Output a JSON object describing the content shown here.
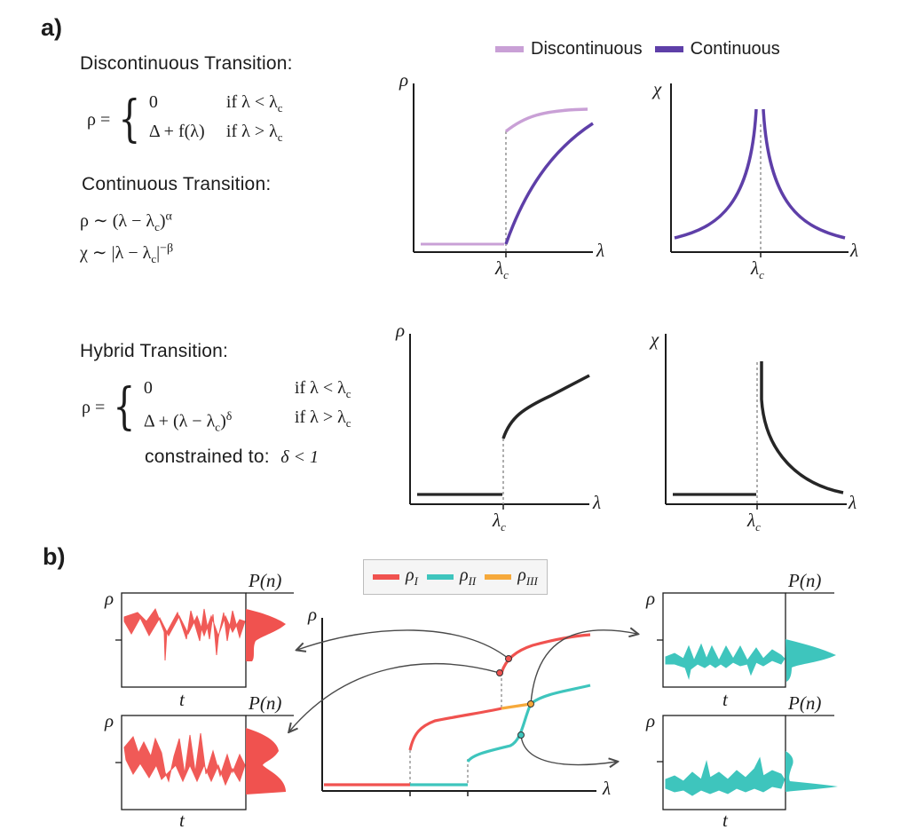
{
  "panel_a": {
    "label": "a)",
    "discontinuous": {
      "heading": "Discontinuous Transition:",
      "lhs": "ρ =",
      "case1_val": "0",
      "case1_cond": "if λ < λ",
      "case2_val": "Δ + f(λ)",
      "case2_cond": "if λ > λ"
    },
    "continuous": {
      "heading": "Continuous Transition:",
      "eq1_lhs": "ρ ∼ (λ − λ",
      "eq1_rhs": ")",
      "eq1_exp": "α",
      "eq2_lhs": "χ ∼ |λ − λ",
      "eq2_rhs": "|",
      "eq2_exp": "−β"
    },
    "hybrid": {
      "heading": "Hybrid Transition:",
      "lhs": "ρ =",
      "case1_val": "0",
      "case1_cond": "if λ < λ",
      "case2_val": "Δ + (λ − λ",
      "case2_val_close": ")",
      "case2_exp": "δ",
      "case2_cond": "if λ > λ",
      "constraint_label": "constrained to:",
      "constraint_expr": "δ < 1"
    },
    "subscript_c": "c",
    "legend": [
      {
        "label": "Discontinuous",
        "color": "#c9a0d6"
      },
      {
        "label": "Continuous",
        "color": "#5e3fa8"
      }
    ],
    "axis_rho": "ρ",
    "axis_chi": "χ",
    "axis_lambda": "λ",
    "tick_lambda_c": "λ",
    "hybrid_color": "#262626"
  },
  "panel_b": {
    "label": "b)",
    "legend": [
      {
        "label": "ρ",
        "sub": "I",
        "color": "#f0524f"
      },
      {
        "label": "ρ",
        "sub": "II",
        "color": "#3ec5bd"
      },
      {
        "label": "ρ",
        "sub": "III",
        "color": "#f6a93b"
      }
    ],
    "axis_rho": "ρ",
    "axis_lambda": "λ",
    "axis_t": "t",
    "pn_label": "P(n)",
    "colors": {
      "red": "#f0524f",
      "teal": "#3ec5bd",
      "orange": "#f6a93b",
      "arrow": "#4a4a4a"
    }
  }
}
